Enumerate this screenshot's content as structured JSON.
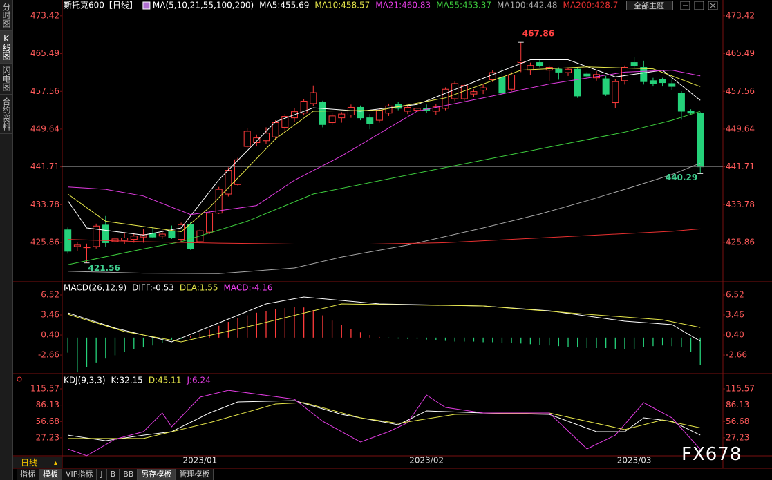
{
  "sidebar_tabs": [
    "分时图",
    "K线图",
    "闪电图",
    "合约资料"
  ],
  "theme_button": "全部主题",
  "period": "日线",
  "watermark": "FX678",
  "bottom_tabs": [
    "指标",
    "模板",
    "VIP指标",
    "J",
    "B",
    "BB",
    "另存模板",
    "管理模板"
  ],
  "chart_data": [
    {
      "type": "candlestick",
      "title": "斯托克600【日线】",
      "indicator": "MA(5,10,21,55,100,200)",
      "up_color": "#ff3b3b",
      "down_color": "#25d27a",
      "xlim": [
        -0.6,
        69.4
      ],
      "ylim": [
        417.6,
        474.7
      ],
      "yticks": [
        473.42,
        465.49,
        457.56,
        449.64,
        441.71,
        433.78,
        425.86
      ],
      "x": [
        0,
        1,
        2,
        3,
        4,
        5,
        6,
        7,
        8,
        9,
        10,
        11,
        12,
        13,
        14,
        15,
        16,
        17,
        18,
        19,
        20,
        21,
        22,
        23,
        24,
        25,
        26,
        27,
        28,
        29,
        30,
        31,
        32,
        33,
        34,
        35,
        36,
        37,
        38,
        39,
        40,
        41,
        42,
        43,
        44,
        45,
        46,
        47,
        48,
        49,
        50,
        51,
        52,
        53,
        54,
        55,
        56,
        57,
        58,
        59,
        60,
        61,
        62,
        63,
        64,
        65,
        66,
        67
      ],
      "open": [
        428.5,
        425.0,
        424.8,
        425.0,
        429.5,
        426.0,
        426.3,
        426.5,
        427.0,
        427.8,
        427.2,
        428.2,
        426.5,
        429.7,
        426.0,
        428.0,
        432.0,
        436.0,
        438.0,
        446.0,
        446.8,
        447.2,
        448.0,
        450.0,
        452.0,
        453.0,
        455.0,
        455.3,
        451.0,
        452.0,
        452.6,
        454.2,
        452.0,
        451.5,
        453.0,
        454.8,
        453.4,
        453.6,
        454.0,
        453.4,
        454.0,
        456.0,
        456.0,
        457.0,
        457.8,
        460.0,
        460.5,
        458.0,
        463.6,
        462.0,
        463.6,
        462.0,
        462.2,
        461.5,
        462.2,
        461.2,
        460.4,
        460.2,
        455.2,
        459.8,
        463.6,
        462.6,
        459.8,
        460.0,
        459.2,
        457.2,
        453.4,
        453.0
      ],
      "high": [
        429.0,
        426.0,
        425.6,
        429.8,
        431.4,
        427.5,
        428.0,
        427.8,
        428.6,
        429.0,
        428.4,
        429.4,
        430.0,
        430.2,
        428.6,
        432.5,
        437.5,
        441.6,
        443.6,
        449.8,
        448.5,
        450.0,
        451.5,
        452.8,
        454.0,
        456.0,
        458.8,
        455.6,
        453.0,
        453.2,
        454.8,
        454.6,
        452.8,
        454.0,
        455.0,
        455.4,
        454.6,
        454.6,
        454.8,
        455.0,
        458.4,
        459.6,
        459.2,
        458.0,
        459.0,
        462.0,
        462.6,
        461.6,
        467.86,
        463.6,
        464.2,
        463.0,
        462.6,
        462.6,
        462.6,
        461.6,
        461.8,
        460.8,
        460.2,
        463.0,
        464.8,
        464.0,
        460.4,
        460.4,
        460.0,
        457.6,
        453.8,
        453.2
      ],
      "low": [
        423.5,
        424.0,
        421.56,
        424.6,
        425.0,
        425.2,
        425.5,
        425.8,
        425.8,
        426.8,
        426.6,
        426.6,
        425.8,
        424.3,
        425.6,
        427.6,
        431.8,
        435.5,
        437.8,
        445.8,
        446.0,
        446.5,
        447.5,
        449.0,
        451.2,
        452.5,
        454.5,
        450.0,
        450.5,
        451.0,
        452.0,
        451.5,
        449.6,
        451.0,
        452.4,
        453.6,
        452.8,
        449.8,
        453.0,
        452.6,
        453.6,
        455.5,
        455.6,
        456.4,
        457.0,
        459.5,
        456.8,
        457.6,
        461.6,
        461.0,
        462.6,
        459.8,
        460.0,
        460.8,
        456.2,
        460.2,
        459.8,
        456.6,
        454.0,
        459.0,
        462.4,
        459.0,
        458.6,
        458.6,
        457.8,
        451.6,
        452.6,
        440.29
      ],
      "close": [
        424.0,
        425.3,
        424.9,
        429.3,
        425.8,
        426.6,
        426.8,
        427.2,
        427.5,
        427.0,
        427.6,
        426.8,
        429.6,
        424.6,
        428.3,
        432.0,
        437.0,
        441.0,
        443.2,
        449.2,
        447.8,
        448.8,
        451.0,
        452.3,
        453.3,
        455.5,
        457.3,
        450.6,
        452.4,
        452.8,
        454.2,
        452.0,
        450.8,
        453.6,
        454.5,
        454.0,
        454.2,
        454.0,
        453.6,
        454.3,
        458.0,
        459.2,
        458.8,
        457.5,
        458.3,
        461.5,
        457.2,
        461.0,
        463.9,
        463.0,
        463.0,
        462.6,
        461.6,
        462.2,
        456.6,
        460.8,
        461.1,
        457.0,
        459.6,
        462.6,
        463.0,
        459.6,
        459.2,
        459.4,
        458.6,
        453.4,
        453.0,
        441.71
      ],
      "series": [
        {
          "name": "MA5:455.69",
          "color": "#ffffff",
          "x": [
            0,
            2,
            8,
            12,
            16,
            22,
            26,
            31,
            37,
            44,
            49,
            53,
            58,
            63,
            67
          ],
          "values": [
            434.6,
            428.9,
            427.4,
            428.9,
            439.0,
            451.2,
            454.1,
            453.4,
            454.8,
            460.3,
            464.2,
            464.2,
            460.6,
            462.0,
            455.69
          ]
        },
        {
          "name": "MA10:458.57",
          "color": "#e8e84a",
          "x": [
            0,
            4,
            12,
            15,
            22,
            26,
            33,
            40,
            48,
            55,
            62,
            67
          ],
          "values": [
            436.0,
            430.3,
            428.1,
            433.2,
            447.6,
            453.4,
            453.6,
            456.2,
            462.0,
            462.7,
            462.3,
            458.57
          ]
        },
        {
          "name": "MA21:460.83",
          "color": "#e23ce2",
          "x": [
            0,
            4,
            8,
            13,
            20,
            24,
            29,
            37,
            44,
            51,
            59,
            64,
            67
          ],
          "values": [
            437.5,
            437.0,
            435.6,
            431.7,
            433.6,
            438.9,
            444.0,
            453.4,
            456.2,
            459.1,
            461.6,
            462.0,
            460.83
          ]
        },
        {
          "name": "MA55:453.37",
          "color": "#3ecf3e",
          "x": [
            0,
            8,
            12,
            19,
            26,
            37,
            48,
            59,
            64,
            67
          ],
          "values": [
            421.2,
            424.5,
            426.0,
            430.3,
            436.0,
            440.4,
            444.7,
            449.0,
            451.5,
            453.37
          ]
        },
        {
          "name": "MA100:442.48",
          "color": "#a8a8a8",
          "x": [
            0,
            8,
            16,
            24,
            29,
            36,
            44,
            50,
            55,
            60,
            64,
            67
          ],
          "values": [
            419.8,
            419.4,
            419.3,
            420.5,
            422.8,
            425.3,
            428.9,
            431.8,
            434.6,
            437.6,
            440.1,
            442.48
          ]
        },
        {
          "name": "MA200:428.7",
          "color": "#e83030",
          "x": [
            0,
            8,
            16,
            24,
            32,
            40,
            48,
            56,
            64,
            67
          ],
          "values": [
            426.5,
            426.0,
            425.7,
            425.5,
            425.5,
            425.8,
            426.6,
            427.4,
            428.2,
            428.7
          ]
        }
      ]
    },
    {
      "type": "macd",
      "title": "MACD(26,12,9)",
      "name": "MACD:-4.16",
      "name_color": "#ff44ff",
      "up_color": "#ff3b3b",
      "down_color": "#25d27a",
      "xlim": [
        -0.6,
        69.4
      ],
      "ylim": [
        -5.5,
        8.1
      ],
      "yticks": [
        6.52,
        3.46,
        {
          "value": 0.4,
          "label": "0.40"
        },
        -2.66
      ],
      "x": [
        0,
        1,
        2,
        3,
        4,
        5,
        6,
        7,
        8,
        9,
        10,
        11,
        12,
        13,
        14,
        15,
        16,
        17,
        18,
        19,
        20,
        21,
        22,
        23,
        24,
        25,
        26,
        27,
        28,
        29,
        30,
        31,
        32,
        33,
        34,
        35,
        36,
        37,
        38,
        39,
        40,
        41,
        42,
        43,
        44,
        45,
        46,
        47,
        48,
        49,
        50,
        51,
        52,
        53,
        54,
        55,
        56,
        57,
        58,
        59,
        60,
        61,
        62,
        63,
        64,
        65,
        66,
        67
      ],
      "values": [
        -2.3,
        -5.3,
        -4.5,
        -3.8,
        -3.2,
        -2.7,
        -2.2,
        -1.8,
        -1.5,
        -1.2,
        -0.8,
        -0.4,
        -0.2,
        0.3,
        0.7,
        1.2,
        1.8,
        2.4,
        3.0,
        3.4,
        3.8,
        4.0,
        4.3,
        4.5,
        4.7,
        4.6,
        4.2,
        3.4,
        2.6,
        1.9,
        1.3,
        0.8,
        0.4,
        0.1,
        -0.1,
        -0.15,
        -0.2,
        -0.2,
        -0.3,
        -0.4,
        -0.5,
        -0.6,
        -0.6,
        -0.6,
        -0.7,
        -0.7,
        -0.8,
        -0.8,
        -0.9,
        -1.0,
        -1.1,
        -1.2,
        -1.3,
        -1.4,
        -1.5,
        -1.6,
        -1.6,
        -1.6,
        -1.7,
        -1.8,
        -1.7,
        -1.4,
        -1.3,
        -1.2,
        -1.3,
        -1.5,
        -2.2,
        -4.16
      ],
      "series": [
        {
          "name": "DIFF:-0.53",
          "color": "#ffffff",
          "x": [
            0,
            5,
            11,
            17,
            21,
            25,
            33,
            44,
            51,
            59,
            64,
            67
          ],
          "values": [
            3.78,
            1.46,
            -0.65,
            2.83,
            5.15,
            6.2,
            5.15,
            4.83,
            4.09,
            2.51,
            1.99,
            -0.53
          ]
        },
        {
          "name": "DEA:1.55",
          "color": "#e8e84a",
          "x": [
            0,
            6,
            12,
            20,
            29,
            44,
            55,
            63,
            67
          ],
          "values": [
            3.57,
            0.93,
            -0.65,
            1.99,
            5.15,
            4.83,
            3.57,
            2.72,
            1.55
          ]
        }
      ]
    },
    {
      "type": "line",
      "title": "KDJ(9,3,3)",
      "xlim": [
        -0.6,
        69.4
      ],
      "ylim": [
        -5.3,
        138
      ],
      "yticks": [
        115.57,
        86.13,
        56.68,
        27.23
      ],
      "xticks": [
        {
          "value": 14,
          "label": "2023/01"
        },
        {
          "value": 38,
          "label": "2023/02"
        },
        {
          "value": 60,
          "label": "2023/03"
        }
      ],
      "series": [
        {
          "name": "K:32.15",
          "color": "#ffffff",
          "x": [
            0,
            4,
            8,
            11,
            15,
            18,
            24,
            29,
            35,
            38,
            44,
            51,
            56,
            59,
            61,
            64,
            67
          ],
          "values": [
            32,
            22,
            32,
            38.3,
            72,
            91.9,
            94.4,
            69.5,
            50.8,
            75.7,
            72,
            69.5,
            38.3,
            38.3,
            63.2,
            57,
            32.15
          ]
        },
        {
          "name": "D:45.11",
          "color": "#e8e84a",
          "x": [
            0,
            8,
            15,
            22,
            25,
            31,
            35,
            41,
            51,
            59,
            63,
            67
          ],
          "values": [
            26,
            26,
            54.5,
            88.2,
            90.6,
            63.2,
            53.3,
            69.5,
            72,
            42,
            59.5,
            45.11
          ]
        },
        {
          "name": "J:6.24",
          "color": "#e23ce2",
          "x": [
            0,
            2,
            5,
            8,
            10,
            11,
            14,
            17,
            24,
            27,
            31,
            34,
            36,
            38,
            40,
            44,
            51,
            55,
            58,
            61,
            64,
            67
          ],
          "values": [
            7,
            -5,
            24.6,
            38.3,
            72,
            47,
            100.6,
            113,
            96.9,
            57,
            19.6,
            38.3,
            54.5,
            104.4,
            82,
            72,
            72,
            7.2,
            32,
            90.6,
            63.2,
            6.24
          ]
        }
      ]
    }
  ]
}
